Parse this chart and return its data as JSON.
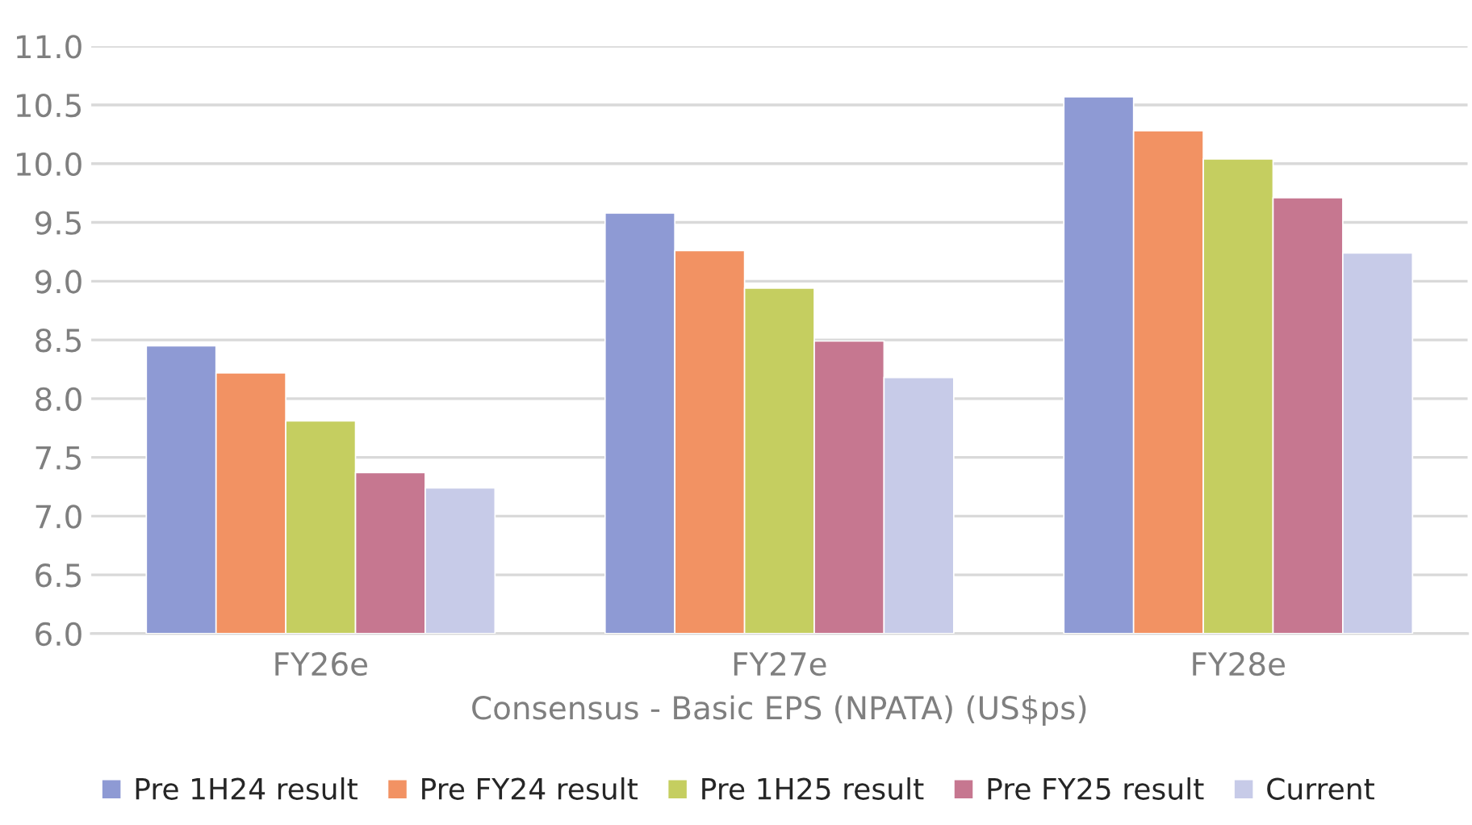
{
  "chart_data": {
    "type": "bar",
    "xlabel": "Consensus - Basic EPS (NPATA) (US$ps)",
    "categories": [
      "FY26e",
      "FY27e",
      "FY28e"
    ],
    "series": [
      {
        "name": "Pre 1H24 result",
        "color": "#8e9ad4",
        "values": [
          8.45,
          9.58,
          10.57
        ]
      },
      {
        "name": "Pre FY24 result",
        "color": "#f29263",
        "values": [
          8.22,
          9.26,
          10.28
        ]
      },
      {
        "name": "Pre 1H25 result",
        "color": "#c5ce60",
        "values": [
          7.81,
          8.94,
          10.04
        ]
      },
      {
        "name": "Pre FY25 result",
        "color": "#c67790",
        "values": [
          7.37,
          8.49,
          9.71
        ]
      },
      {
        "name": "Current",
        "color": "#c7cbe8",
        "values": [
          7.24,
          8.18,
          9.24
        ]
      }
    ],
    "ylim": [
      6.0,
      11.0
    ],
    "yticks": [
      {
        "value": 6,
        "label": "6.0"
      },
      {
        "value": 6.5,
        "label": "6.5"
      },
      {
        "value": 7,
        "label": "7.0"
      },
      {
        "value": 7.5,
        "label": "7.5"
      },
      {
        "value": 8,
        "label": "8.0"
      },
      {
        "value": 8.5,
        "label": "8.5"
      },
      {
        "value": 9,
        "label": "9.0"
      },
      {
        "value": 9.5,
        "label": "9.5"
      },
      {
        "value": 10,
        "label": "10.0"
      },
      {
        "value": 10.5,
        "label": "10.5"
      },
      {
        "value": 11,
        "label": "11.0"
      }
    ],
    "grid": "y",
    "legend": "bottom"
  }
}
